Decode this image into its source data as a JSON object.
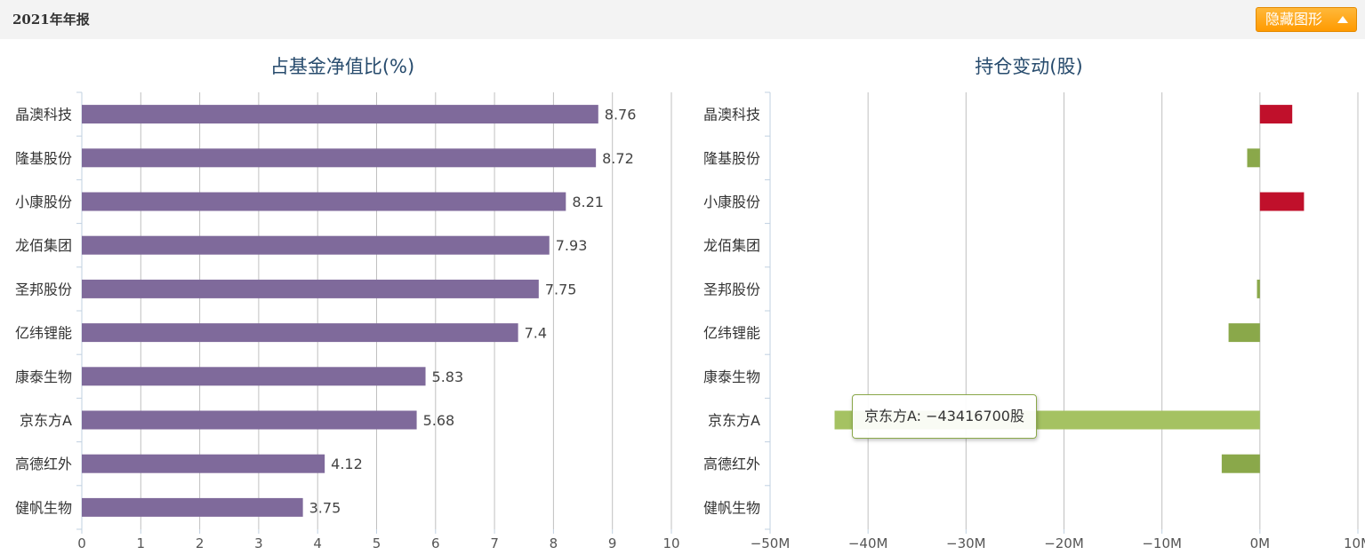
{
  "header": {
    "title": "2021年年报",
    "toggle_label": "隐藏图形"
  },
  "colors": {
    "ratio_bar": "#7f6a9b",
    "increase": "#c0102b",
    "decrease": "#8aa84a",
    "decrease_highlight": "#a5c262",
    "axis": "#c0d0e0",
    "grid": "#c0c0c0",
    "title": "#274b6d",
    "label": "#333333"
  },
  "tooltip": {
    "text": "京东方A: −43416700股"
  },
  "chart_data": [
    {
      "type": "bar",
      "orientation": "horizontal",
      "title": "占基金净值比(%)",
      "categories": [
        "晶澳科技",
        "隆基股份",
        "小康股份",
        "龙佰集团",
        "圣邦股份",
        "亿纬锂能",
        "康泰生物",
        "京东方A",
        "高德红外",
        "健帆生物"
      ],
      "values": [
        8.76,
        8.72,
        8.21,
        7.93,
        7.75,
        7.4,
        5.83,
        5.68,
        4.12,
        3.75
      ],
      "value_labels": [
        "8.76",
        "8.72",
        "8.21",
        "7.93",
        "7.75",
        "7.4",
        "5.83",
        "5.68",
        "4.12",
        "3.75"
      ],
      "xlim": [
        0,
        10
      ],
      "ticks": [
        0,
        1,
        2,
        3,
        4,
        5,
        6,
        7,
        8,
        9,
        10
      ],
      "tick_labels": [
        "0",
        "1",
        "2",
        "3",
        "4",
        "5",
        "6",
        "7",
        "8",
        "9",
        "10"
      ],
      "grid": true
    },
    {
      "type": "bar",
      "orientation": "horizontal",
      "title": "持仓变动(股)",
      "categories": [
        "晶澳科技",
        "隆基股份",
        "小康股份",
        "龙佰集团",
        "圣邦股份",
        "亿纬锂能",
        "康泰生物",
        "京东方A",
        "高德红外",
        "健帆生物"
      ],
      "values": [
        3300000,
        -1300000,
        4500000,
        0,
        -300000,
        -3200000,
        0,
        -43416700,
        -3900000,
        0
      ],
      "xlim": [
        -50000000,
        10000000
      ],
      "ticks": [
        -50000000,
        -40000000,
        -30000000,
        -20000000,
        -10000000,
        0,
        10000000
      ],
      "tick_labels": [
        "−50M",
        "−40M",
        "−30M",
        "−20M",
        "−10M",
        "0M",
        "10M"
      ],
      "highlighted_category": "京东方A",
      "grid": true
    }
  ]
}
